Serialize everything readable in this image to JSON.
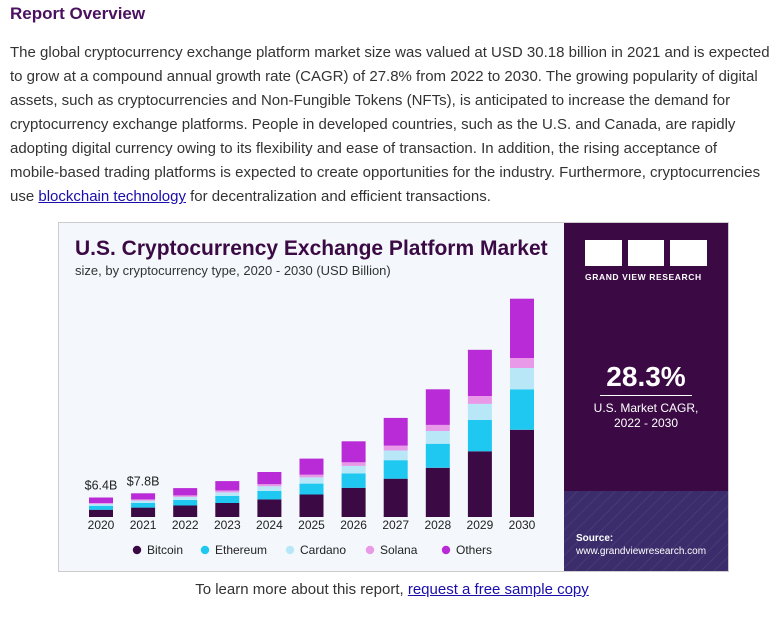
{
  "report": {
    "heading": "Report Overview",
    "paragraph": "The global cryptocurrency exchange platform market size was valued at USD 30.18 billion in 2021 and is expected to grow at a compound annual growth rate (CAGR) of 27.8% from 2022 to 2030. The growing popularity of digital assets, such as cryptocurrencies and Non-Fungible Tokens (NFTs), is anticipated to increase the demand for cryptocurrency exchange platforms. People in developed countries, such as the U.S. and Canada, are rapidly adopting digital currency owing to its flexibility and ease of transaction. In addition, the rising acceptance of mobile-based trading platforms is expected to create opportunities for the industry. Furthermore, cryptocurrencies use",
    "link_text": "blockchain technology",
    "paragraph_end": " for decentralization and efficient transactions."
  },
  "side_panel": {
    "logo_text": "GRAND VIEW RESEARCH",
    "cagr_value": "28.3%",
    "cagr_label": "U.S. Market CAGR,",
    "cagr_period": "2022 - 2030",
    "source_label": "Source:",
    "source_url": "www.grandviewresearch.com"
  },
  "footer": {
    "text": "To learn more about this report, ",
    "link_text": "request a free sample copy"
  },
  "chart_data": {
    "type": "bar",
    "stacked": true,
    "title": "U.S. Cryptocurrency Exchange Platform Market",
    "subtitle": "size, by cryptocurrency type, 2020 - 2030 (USD Billion)",
    "categories": [
      "2020",
      "2021",
      "2022",
      "2023",
      "2024",
      "2025",
      "2026",
      "2027",
      "2028",
      "2029",
      "2030"
    ],
    "series": [
      {
        "name": "Bitcoin",
        "color": "#3b0a45",
        "values": [
          2.4,
          3.1,
          3.8,
          4.6,
          5.8,
          7.4,
          9.6,
          12.6,
          16.2,
          21.6,
          28.7
        ]
      },
      {
        "name": "Ethereum",
        "color": "#1ec8f0",
        "values": [
          1.3,
          1.5,
          1.8,
          2.3,
          2.8,
          3.6,
          4.7,
          6.1,
          7.9,
          10.3,
          13.3
        ]
      },
      {
        "name": "Cardano",
        "color": "#b8e8f8",
        "values": [
          0.6,
          0.8,
          1.0,
          1.2,
          1.5,
          2.0,
          2.5,
          3.2,
          4.2,
          5.3,
          7.0
        ]
      },
      {
        "name": "Solana",
        "color": "#e89ae8",
        "values": [
          0.3,
          0.4,
          0.5,
          0.6,
          0.7,
          0.9,
          1.2,
          1.6,
          2.0,
          2.6,
          3.3
        ]
      },
      {
        "name": "Others",
        "color": "#b82bd6",
        "values": [
          1.8,
          2.0,
          2.4,
          3.1,
          4.0,
          5.3,
          6.9,
          9.1,
          11.7,
          15.2,
          19.5
        ]
      }
    ],
    "data_labels": [
      {
        "category": "2020",
        "text": "$6.4B"
      },
      {
        "category": "2021",
        "text": "$7.8B"
      }
    ],
    "ylim": [
      0,
      75
    ],
    "grid": false,
    "legend_position": "bottom"
  }
}
